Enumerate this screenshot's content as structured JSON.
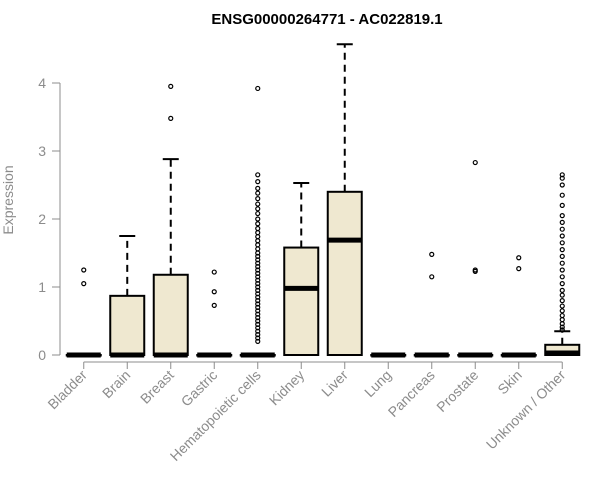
{
  "chart_data": {
    "type": "boxplot",
    "title": "ENSG00000264771 - AC022819.1",
    "xlabel": "",
    "ylabel": "Expression",
    "ylim": [
      -0.08,
      4.65
    ],
    "yticks": [
      0,
      1,
      2,
      3,
      4
    ],
    "grid": false,
    "legend": "none",
    "box_fill": "#efe8d0",
    "box_stroke": "#000000",
    "categories": [
      "Bladder",
      "Brain",
      "Breast",
      "Gastric",
      "Hematopoietic cells",
      "Kidney",
      "Liver",
      "Lung",
      "Pancreas",
      "Prostate",
      "Skin",
      "Unknown / Other"
    ],
    "boxes": [
      {
        "q1": 0,
        "median": 0,
        "q3": 0,
        "whisker_low": 0,
        "whisker_high": 0,
        "outliers": [
          1.25,
          1.05
        ]
      },
      {
        "q1": 0,
        "median": 0,
        "q3": 0.87,
        "whisker_low": 0,
        "whisker_high": 1.75,
        "outliers": []
      },
      {
        "q1": 0,
        "median": 0,
        "q3": 1.18,
        "whisker_low": 0,
        "whisker_high": 2.88,
        "outliers": [
          3.95,
          3.48
        ]
      },
      {
        "q1": 0,
        "median": 0,
        "q3": 0,
        "whisker_low": 0,
        "whisker_high": 0,
        "outliers": [
          1.22,
          0.93,
          0.73
        ]
      },
      {
        "q1": 0,
        "median": 0,
        "q3": 0,
        "whisker_low": 0,
        "whisker_high": 0,
        "outliers": [
          3.92,
          2.65,
          2.55,
          2.45,
          2.38,
          2.3,
          2.22,
          2.15,
          2.08,
          2.0,
          1.93,
          1.86,
          1.8,
          1.74,
          1.68,
          1.62,
          1.56,
          1.5,
          1.45,
          1.4,
          1.35,
          1.3,
          1.25,
          1.2,
          1.15,
          1.1,
          1.05,
          1.0,
          0.95,
          0.9,
          0.85,
          0.8,
          0.75,
          0.7,
          0.65,
          0.6,
          0.55,
          0.5,
          0.45,
          0.4,
          0.35,
          0.3,
          0.25,
          0.2
        ]
      },
      {
        "q1": 0,
        "median": 0.98,
        "q3": 1.58,
        "whisker_low": 0,
        "whisker_high": 2.53,
        "outliers": []
      },
      {
        "q1": 0,
        "median": 1.69,
        "q3": 2.4,
        "whisker_low": 0,
        "whisker_high": 4.57,
        "outliers": []
      },
      {
        "q1": 0,
        "median": 0,
        "q3": 0,
        "whisker_low": 0,
        "whisker_high": 0,
        "outliers": []
      },
      {
        "q1": 0,
        "median": 0,
        "q3": 0,
        "whisker_low": 0,
        "whisker_high": 0,
        "outliers": [
          1.48,
          1.15
        ]
      },
      {
        "q1": 0,
        "median": 0,
        "q3": 0,
        "whisker_low": 0,
        "whisker_high": 0,
        "outliers": [
          2.83,
          1.25,
          1.23
        ]
      },
      {
        "q1": 0,
        "median": 0,
        "q3": 0,
        "whisker_low": 0,
        "whisker_high": 0,
        "outliers": [
          1.43,
          1.27
        ]
      },
      {
        "q1": 0,
        "median": 0.03,
        "q3": 0.15,
        "whisker_low": 0,
        "whisker_high": 0.35,
        "outliers": [
          2.65,
          2.6,
          2.5,
          2.35,
          2.2,
          2.05,
          1.95,
          1.85,
          1.75,
          1.65,
          1.55,
          1.45,
          1.35,
          1.25,
          1.15,
          1.05,
          0.95,
          0.88,
          0.8,
          0.72,
          0.65,
          0.58,
          0.52,
          0.46,
          0.41,
          0.37
        ]
      }
    ]
  }
}
